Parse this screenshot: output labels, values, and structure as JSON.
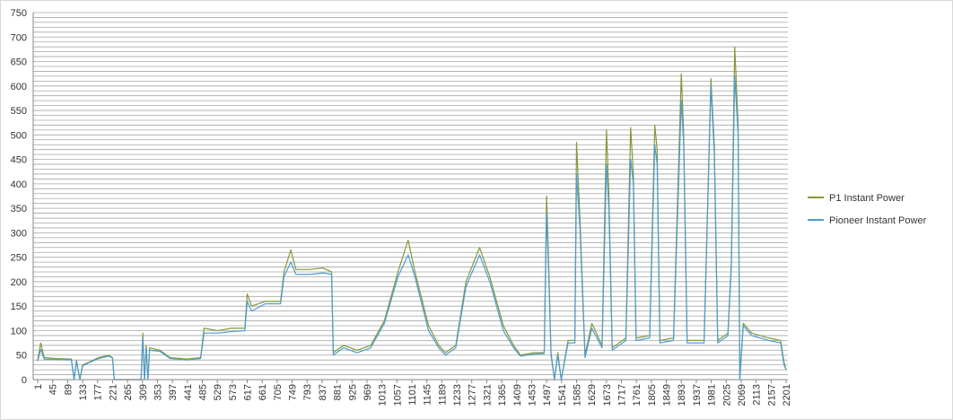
{
  "chart_data": {
    "type": "line",
    "x": [
      1,
      10,
      20,
      60,
      100,
      108,
      115,
      125,
      133,
      150,
      180,
      210,
      221,
      226,
      305,
      310,
      315,
      320,
      325,
      330,
      360,
      390,
      440,
      480,
      490,
      530,
      570,
      610,
      617,
      630,
      670,
      715,
      725,
      745,
      760,
      800,
      840,
      865,
      870,
      900,
      940,
      980,
      1020,
      1060,
      1090,
      1110,
      1150,
      1180,
      1200,
      1230,
      1260,
      1300,
      1330,
      1370,
      1400,
      1420,
      1460,
      1490,
      1497,
      1503,
      1510,
      1520,
      1530,
      1540,
      1560,
      1580,
      1585,
      1595,
      1610,
      1630,
      1660,
      1673,
      1680,
      1690,
      1730,
      1744,
      1752,
      1760,
      1800,
      1815,
      1822,
      1830,
      1870,
      1893,
      1900,
      1910,
      1960,
      1980,
      1990,
      2000,
      2030,
      2040,
      2050,
      2060,
      2065,
      2075,
      2100,
      2150,
      2185,
      2195,
      2201
    ],
    "series": [
      {
        "name": "P1 Instant Power",
        "color": "#7f9a3a",
        "values": [
          40,
          75,
          45,
          43,
          42,
          0,
          40,
          0,
          30,
          35,
          45,
          50,
          45,
          0,
          0,
          95,
          0,
          70,
          0,
          65,
          60,
          45,
          42,
          45,
          105,
          100,
          105,
          105,
          175,
          150,
          160,
          160,
          220,
          265,
          225,
          225,
          228,
          220,
          55,
          70,
          60,
          70,
          120,
          220,
          285,
          220,
          110,
          70,
          55,
          70,
          200,
          270,
          210,
          110,
          70,
          50,
          55,
          55,
          375,
          240,
          55,
          0,
          55,
          0,
          80,
          80,
          485,
          330,
          50,
          115,
          70,
          510,
          380,
          65,
          85,
          515,
          420,
          85,
          90,
          520,
          470,
          80,
          85,
          625,
          500,
          80,
          80,
          615,
          480,
          80,
          95,
          240,
          680,
          520,
          0,
          115,
          95,
          85,
          80,
          35,
          20
        ]
      },
      {
        "name": "Pioneer Instant Power",
        "color": "#4f9bd0",
        "values": [
          38,
          62,
          42,
          41,
          40,
          0,
          38,
          0,
          28,
          34,
          43,
          48,
          44,
          0,
          0,
          85,
          0,
          65,
          0,
          60,
          58,
          43,
          40,
          43,
          95,
          95,
          98,
          100,
          160,
          140,
          155,
          155,
          210,
          240,
          215,
          215,
          218,
          215,
          50,
          65,
          55,
          65,
          115,
          210,
          255,
          210,
          100,
          65,
          50,
          65,
          190,
          255,
          200,
          100,
          65,
          48,
          52,
          53,
          340,
          220,
          50,
          0,
          50,
          0,
          75,
          75,
          420,
          310,
          45,
          105,
          65,
          440,
          350,
          60,
          80,
          450,
          400,
          80,
          85,
          480,
          440,
          75,
          80,
          570,
          480,
          75,
          75,
          600,
          460,
          75,
          90,
          230,
          620,
          500,
          0,
          110,
          90,
          80,
          75,
          30,
          20
        ]
      }
    ],
    "xlim": [
      1,
      2201
    ],
    "xticks": [
      1,
      45,
      89,
      133,
      177,
      221,
      265,
      309,
      353,
      397,
      441,
      485,
      529,
      573,
      617,
      661,
      705,
      749,
      793,
      837,
      881,
      925,
      969,
      1013,
      1057,
      1101,
      1145,
      1189,
      1233,
      1277,
      1321,
      1365,
      1409,
      1453,
      1497,
      1541,
      1585,
      1629,
      1673,
      1717,
      1761,
      1805,
      1849,
      1893,
      1937,
      1981,
      2025,
      2069,
      2113,
      2157,
      2201
    ],
    "ylim": [
      0,
      750
    ],
    "yticks": [
      0,
      50,
      100,
      150,
      200,
      250,
      300,
      350,
      400,
      450,
      500,
      550,
      600,
      650,
      700,
      750
    ],
    "grid_lines": [
      0,
      10,
      20,
      30,
      40,
      50,
      60,
      70,
      80,
      90,
      100,
      110,
      120,
      130,
      140,
      150,
      160,
      170,
      180,
      190,
      200,
      210,
      220,
      230,
      240,
      250,
      260,
      270,
      280,
      290,
      300,
      310,
      320,
      330,
      340,
      350,
      360,
      370,
      380,
      390,
      400,
      410,
      420,
      430,
      440,
      450,
      460,
      470,
      480,
      490,
      500,
      510,
      520,
      530,
      540,
      550,
      560,
      570,
      580,
      590,
      600,
      610,
      620,
      630,
      640,
      650,
      660,
      670,
      680,
      690,
      700,
      710,
      720,
      730,
      740,
      750
    ],
    "grid": true,
    "legend": "right"
  }
}
